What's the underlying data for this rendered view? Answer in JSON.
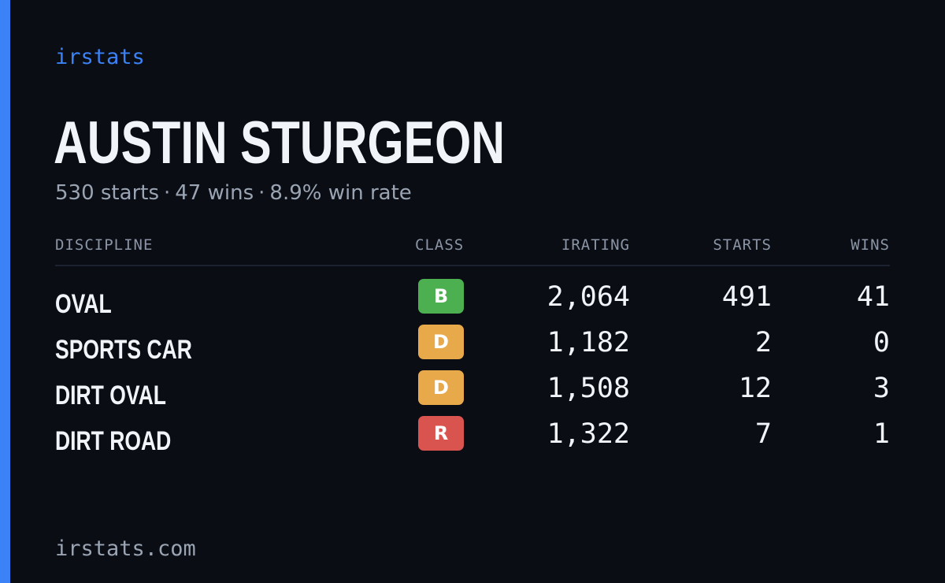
{
  "brand": "irstats",
  "player": {
    "name": "AUSTIN STURGEON",
    "starts_text": "530 starts",
    "wins_text": "47 wins",
    "win_rate_text": "8.9% win rate",
    "separator": "·"
  },
  "table": {
    "headers": {
      "discipline": "DISCIPLINE",
      "class": "CLASS",
      "irating": "IRATING",
      "starts": "STARTS",
      "wins": "WINS"
    },
    "rows": [
      {
        "discipline": "OVAL",
        "class": "B",
        "class_color": "#4caf50",
        "irating": "2,064",
        "starts": "491",
        "wins": "41"
      },
      {
        "discipline": "SPORTS CAR",
        "class": "D",
        "class_color": "#e8a94a",
        "irating": "1,182",
        "starts": "2",
        "wins": "0"
      },
      {
        "discipline": "DIRT OVAL",
        "class": "D",
        "class_color": "#e8a94a",
        "irating": "1,508",
        "starts": "12",
        "wins": "3"
      },
      {
        "discipline": "DIRT ROAD",
        "class": "R",
        "class_color": "#d9534f",
        "irating": "1,322",
        "starts": "7",
        "wins": "1"
      }
    ]
  },
  "footer": {
    "url": "irstats.com"
  },
  "colors": {
    "background": "#0a0d14",
    "accent": "#3b82f6",
    "text_primary": "#f1f5f9",
    "text_muted": "#9aa4b2"
  }
}
